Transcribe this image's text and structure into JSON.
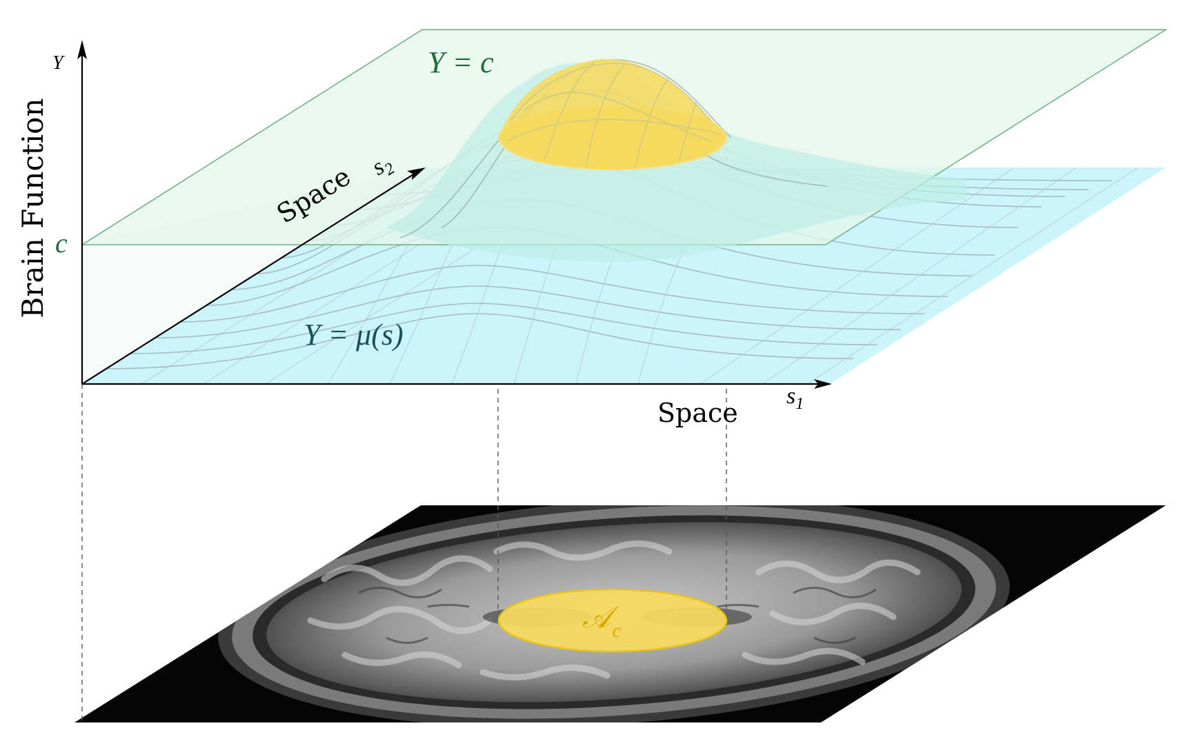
{
  "labels": {
    "y_axis_name": "Brain Function",
    "y_axis_symbol": "Y",
    "c_tick": "c",
    "s2_axis_name": "Space",
    "s2_axis_symbol": "s",
    "s2_axis_subscript": "2",
    "s1_axis_name": "Space",
    "s1_axis_symbol": "s",
    "s1_axis_subscript": "1",
    "plane_label": "Y = c",
    "surface_label": "Y = μ(s)",
    "excursion_set_symbol": "𝒜",
    "excursion_set_subscript": "c"
  },
  "colors": {
    "threshold_plane": "#e3f5ea",
    "threshold_plane_edge": "#6fae86",
    "threshold_text": "#1f6b3a",
    "surface_base": "#ccf5fb",
    "surface_peak": "#bdeee6",
    "excursion_set": "#f6da5e",
    "excursion_set_edge": "#e9c21a",
    "excursion_text": "#d9a800",
    "axis": "#000000"
  },
  "icons": {
    "brain_slice": "axial-mri-slice"
  }
}
